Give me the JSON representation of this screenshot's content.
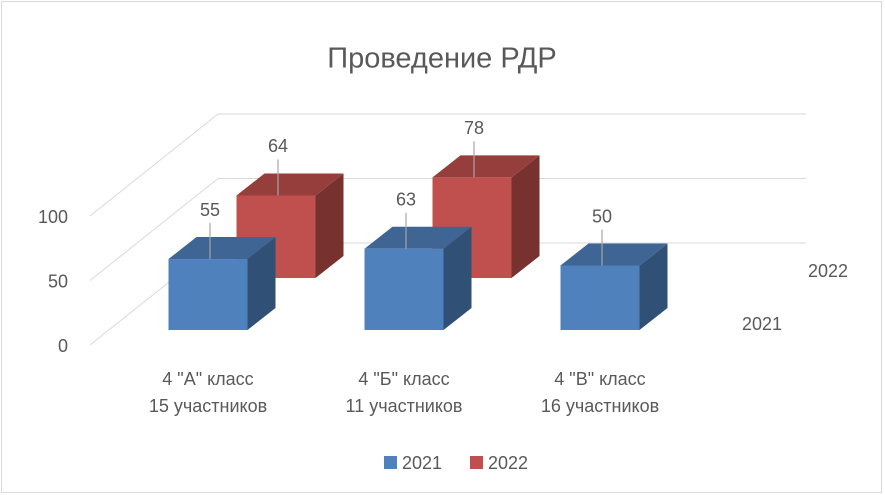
{
  "chart_data": {
    "type": "bar3d",
    "title": "Проведение РДР",
    "categories": [
      [
        "4 \"А\" класс",
        "15 участников"
      ],
      [
        "4 \"Б\" класс",
        "11 участников"
      ],
      [
        "4 \"В\" класс",
        "16 участников"
      ]
    ],
    "series": [
      {
        "name": "2021",
        "color": "#4f81bd",
        "values": [
          55,
          63,
          50
        ]
      },
      {
        "name": "2022",
        "color": "#c0504d",
        "values": [
          64,
          78,
          null
        ]
      }
    ],
    "ylim": [
      0,
      100
    ],
    "yticks": [
      0,
      50,
      100
    ],
    "grid": true,
    "legend": "bottom"
  }
}
